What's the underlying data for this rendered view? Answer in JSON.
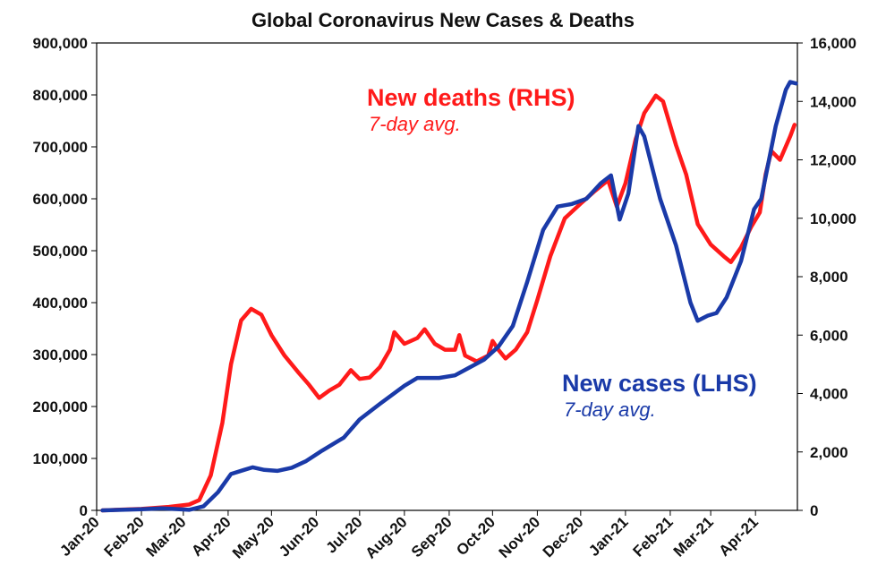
{
  "chart_data": {
    "type": "line",
    "title": "Global Coronavirus New Cases & Deaths",
    "x_tick_labels": [
      "Jan-20",
      "Feb-20",
      "Mar-20",
      "Apr-20",
      "May-20",
      "Jun-20",
      "Jul-20",
      "Aug-20",
      "Sep-20",
      "Oct-20",
      "Nov-20",
      "Dec-20",
      "Jan-21",
      "Feb-21",
      "Mar-21",
      "Apr-21"
    ],
    "xlim": [
      "2020-01-01",
      "2021-04-30"
    ],
    "y_left": {
      "ylim": [
        0,
        900000
      ],
      "tick_labels": [
        "0",
        "100,000",
        "200,000",
        "300,000",
        "400,000",
        "500,000",
        "600,000",
        "700,000",
        "800,000",
        "900,000"
      ]
    },
    "y_right": {
      "ylim": [
        0,
        16000
      ],
      "tick_labels": [
        "0",
        "2,000",
        "4,000",
        "6,000",
        "8,000",
        "10,000",
        "12,000",
        "14,000",
        "16,000"
      ]
    },
    "grid": false,
    "series": [
      {
        "name": "New deaths (RHS)",
        "note": "7-day avg.",
        "axis": "right",
        "color": "#ff1a1a",
        "points": [
          [
            "2020-01-05",
            0
          ],
          [
            "2020-02-01",
            50
          ],
          [
            "2020-02-20",
            120
          ],
          [
            "2020-03-05",
            200
          ],
          [
            "2020-03-12",
            350
          ],
          [
            "2020-03-20",
            1200
          ],
          [
            "2020-03-28",
            3000
          ],
          [
            "2020-04-03",
            5000
          ],
          [
            "2020-04-10",
            6500
          ],
          [
            "2020-04-17",
            6900
          ],
          [
            "2020-04-24",
            6700
          ],
          [
            "2020-05-01",
            6000
          ],
          [
            "2020-05-10",
            5300
          ],
          [
            "2020-05-20",
            4700
          ],
          [
            "2020-05-27",
            4300
          ],
          [
            "2020-06-03",
            3850
          ],
          [
            "2020-06-10",
            4100
          ],
          [
            "2020-06-17",
            4300
          ],
          [
            "2020-06-25",
            4800
          ],
          [
            "2020-07-01",
            4500
          ],
          [
            "2020-07-08",
            4550
          ],
          [
            "2020-07-15",
            4900
          ],
          [
            "2020-07-22",
            5500
          ],
          [
            "2020-07-25",
            6100
          ],
          [
            "2020-08-01",
            5700
          ],
          [
            "2020-08-10",
            5900
          ],
          [
            "2020-08-15",
            6200
          ],
          [
            "2020-08-22",
            5700
          ],
          [
            "2020-08-29",
            5500
          ],
          [
            "2020-09-05",
            5500
          ],
          [
            "2020-09-08",
            6000
          ],
          [
            "2020-09-12",
            5300
          ],
          [
            "2020-09-20",
            5100
          ],
          [
            "2020-09-28",
            5300
          ],
          [
            "2020-10-01",
            5800
          ],
          [
            "2020-10-05",
            5500
          ],
          [
            "2020-10-10",
            5200
          ],
          [
            "2020-10-17",
            5500
          ],
          [
            "2020-10-25",
            6100
          ],
          [
            "2020-11-01",
            7200
          ],
          [
            "2020-11-10",
            8700
          ],
          [
            "2020-11-20",
            10000
          ],
          [
            "2020-12-01",
            10500
          ],
          [
            "2020-12-10",
            10900
          ],
          [
            "2020-12-20",
            11300
          ],
          [
            "2020-12-26",
            10400
          ],
          [
            "2021-01-01",
            11200
          ],
          [
            "2021-01-08",
            12700
          ],
          [
            "2021-01-14",
            13600
          ],
          [
            "2021-01-22",
            14200
          ],
          [
            "2021-01-27",
            14000
          ],
          [
            "2021-02-05",
            12500
          ],
          [
            "2021-02-12",
            11500
          ],
          [
            "2021-02-20",
            9800
          ],
          [
            "2021-03-01",
            9100
          ],
          [
            "2021-03-10",
            8700
          ],
          [
            "2021-03-15",
            8500
          ],
          [
            "2021-03-22",
            9000
          ],
          [
            "2021-03-29",
            9700
          ],
          [
            "2021-04-04",
            10200
          ],
          [
            "2021-04-08",
            11500
          ],
          [
            "2021-04-12",
            12300
          ],
          [
            "2021-04-18",
            12000
          ],
          [
            "2021-04-25",
            12800
          ],
          [
            "2021-04-28",
            13200
          ]
        ]
      },
      {
        "name": "New cases (LHS)",
        "note": "7-day avg.",
        "axis": "left",
        "color": "#1a3aa8",
        "points": [
          [
            "2020-01-05",
            0
          ],
          [
            "2020-02-01",
            2000
          ],
          [
            "2020-02-15",
            4000
          ],
          [
            "2020-02-22",
            3000
          ],
          [
            "2020-03-05",
            1000
          ],
          [
            "2020-03-15",
            8000
          ],
          [
            "2020-03-25",
            35000
          ],
          [
            "2020-04-03",
            70000
          ],
          [
            "2020-04-12",
            78000
          ],
          [
            "2020-04-18",
            83000
          ],
          [
            "2020-04-26",
            78000
          ],
          [
            "2020-05-05",
            76000
          ],
          [
            "2020-05-15",
            82000
          ],
          [
            "2020-05-25",
            95000
          ],
          [
            "2020-06-05",
            115000
          ],
          [
            "2020-06-20",
            140000
          ],
          [
            "2020-07-01",
            175000
          ],
          [
            "2020-07-15",
            205000
          ],
          [
            "2020-08-01",
            240000
          ],
          [
            "2020-08-10",
            255000
          ],
          [
            "2020-08-25",
            255000
          ],
          [
            "2020-09-05",
            260000
          ],
          [
            "2020-09-15",
            275000
          ],
          [
            "2020-09-25",
            290000
          ],
          [
            "2020-10-05",
            315000
          ],
          [
            "2020-10-15",
            355000
          ],
          [
            "2020-10-25",
            440000
          ],
          [
            "2020-11-05",
            540000
          ],
          [
            "2020-11-15",
            585000
          ],
          [
            "2020-11-25",
            590000
          ],
          [
            "2020-12-05",
            600000
          ],
          [
            "2020-12-15",
            630000
          ],
          [
            "2020-12-22",
            645000
          ],
          [
            "2020-12-28",
            560000
          ],
          [
            "2021-01-03",
            610000
          ],
          [
            "2021-01-10",
            740000
          ],
          [
            "2021-01-14",
            720000
          ],
          [
            "2021-01-25",
            600000
          ],
          [
            "2021-02-05",
            510000
          ],
          [
            "2021-02-15",
            400000
          ],
          [
            "2021-02-20",
            365000
          ],
          [
            "2021-02-27",
            375000
          ],
          [
            "2021-03-05",
            380000
          ],
          [
            "2021-03-12",
            410000
          ],
          [
            "2021-03-22",
            480000
          ],
          [
            "2021-03-31",
            580000
          ],
          [
            "2021-04-05",
            600000
          ],
          [
            "2021-04-15",
            740000
          ],
          [
            "2021-04-22",
            810000
          ],
          [
            "2021-04-25",
            825000
          ],
          [
            "2021-04-29",
            822000
          ]
        ]
      }
    ]
  },
  "labels": {
    "deaths_title": "New deaths (RHS)",
    "deaths_sub": "7-day avg.",
    "cases_title": "New cases (LHS)",
    "cases_sub": "7-day avg."
  }
}
